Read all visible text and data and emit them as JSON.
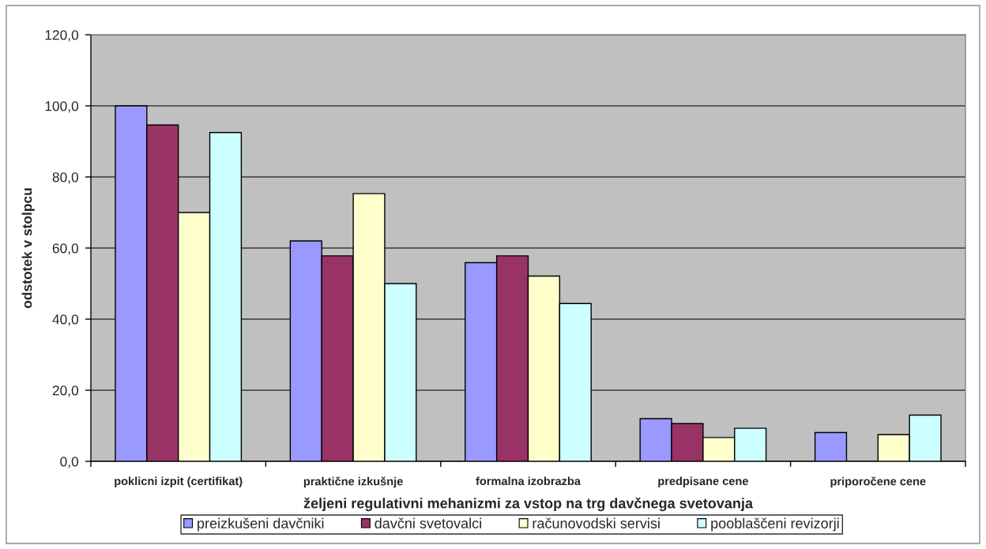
{
  "chart_data": {
    "type": "bar",
    "xlabel": "željeni regulativni mehanizmi za vstop na trg davčnega svetovanja",
    "ylabel": "odstotek v stolpcu",
    "categories": [
      "poklicni izpit (certifikat)",
      "praktične izkušnje",
      "formalna izobrazba",
      "predpisane cene",
      "priporočene cene"
    ],
    "series": [
      {
        "name": "preizkušeni davčniki",
        "color": "#9999ff",
        "values": [
          100.0,
          62.0,
          55.9,
          12.0,
          8.1
        ]
      },
      {
        "name": "davčni svetovalci",
        "color": "#993366",
        "values": [
          94.6,
          57.8,
          57.8,
          10.6,
          null
        ]
      },
      {
        "name": "računovodski servisi",
        "color": "#ffffcc",
        "values": [
          70.0,
          75.3,
          52.1,
          6.7,
          7.5
        ]
      },
      {
        "name": "pooblaščeni revizorji",
        "color": "#ccffff",
        "values": [
          92.5,
          50.0,
          44.4,
          9.3,
          13.0
        ]
      }
    ],
    "ylim": [
      0,
      120
    ],
    "yticks": [
      {
        "value": 0,
        "label": "0,0"
      },
      {
        "value": 20,
        "label": "20,0"
      },
      {
        "value": 40,
        "label": "40,0"
      },
      {
        "value": 60,
        "label": "60,0"
      },
      {
        "value": 80,
        "label": "80,0"
      },
      {
        "value": 100,
        "label": "100,0"
      },
      {
        "value": 120,
        "label": "120,0"
      }
    ],
    "grid": "y",
    "legend": "bottom"
  }
}
